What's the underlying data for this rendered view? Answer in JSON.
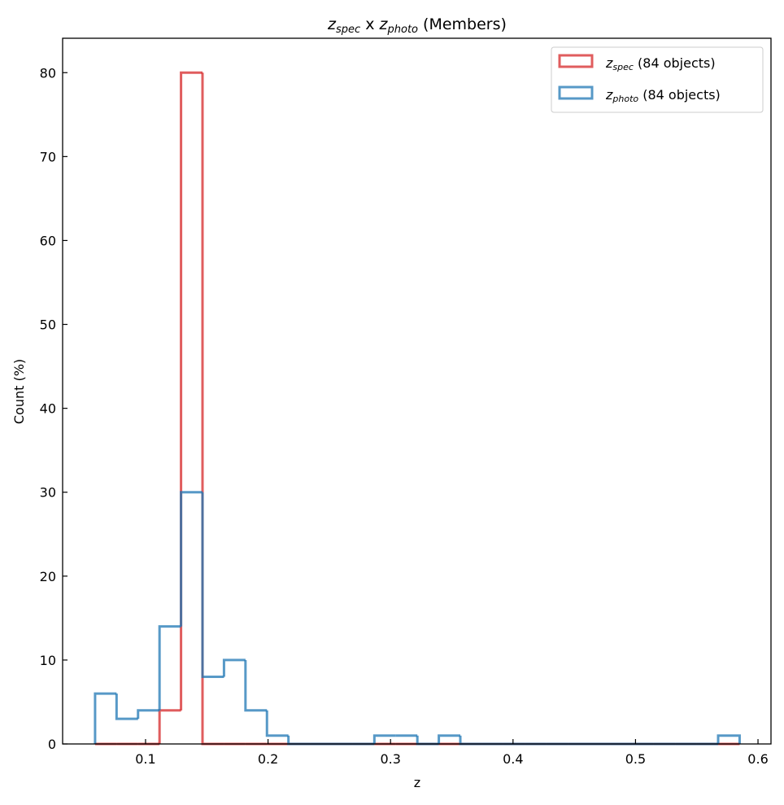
{
  "chart_data": {
    "type": "histogram-step",
    "title": {
      "z1": "z",
      "sub1": "spec",
      "mid": " x ",
      "z2": "z",
      "sub2": "photo",
      "tail": " (Members)"
    },
    "xlabel": "z",
    "ylabel": "Count (%)",
    "xlim": [
      0.0323,
      0.6106
    ],
    "ylim": [
      0,
      84.1
    ],
    "xticks": [
      0.1,
      0.2,
      0.3,
      0.4,
      0.5,
      0.6
    ],
    "xtick_labels": [
      "0.1",
      "0.2",
      "0.3",
      "0.4",
      "0.5",
      "0.6"
    ],
    "yticks": [
      0,
      10,
      20,
      30,
      40,
      50,
      60,
      70,
      80
    ],
    "ytick_labels": [
      "0",
      "10",
      "20",
      "30",
      "40",
      "50",
      "60",
      "70",
      "80"
    ],
    "bin_range": [
      0.0588,
      0.585
    ],
    "bins": 30,
    "grid": false,
    "legend_position": "top-right",
    "series": [
      {
        "name": "z_spec (84 objects)",
        "legend": {
          "z": "z",
          "sub": "spec",
          "rest": " (84 objects)"
        },
        "color": "#d62728",
        "alpha": 0.75,
        "values": [
          0,
          0,
          0,
          4,
          80,
          0,
          0,
          0,
          0,
          0,
          0,
          0,
          0,
          0,
          0,
          0,
          0,
          0,
          0,
          0,
          0,
          0,
          0,
          0,
          0,
          0,
          0,
          0,
          0,
          0
        ]
      },
      {
        "name": "z_photo (84 objects)",
        "legend": {
          "z": "z",
          "sub": "photo",
          "rest": " (84 objects)"
        },
        "color": "#1f77b4",
        "alpha": 0.75,
        "values": [
          6,
          3,
          4,
          14,
          30,
          8,
          10,
          4,
          1,
          0,
          0,
          0,
          0,
          1,
          1,
          0,
          1,
          0,
          0,
          0,
          0,
          0,
          0,
          0,
          0,
          0,
          0,
          0,
          0,
          1
        ]
      }
    ]
  }
}
